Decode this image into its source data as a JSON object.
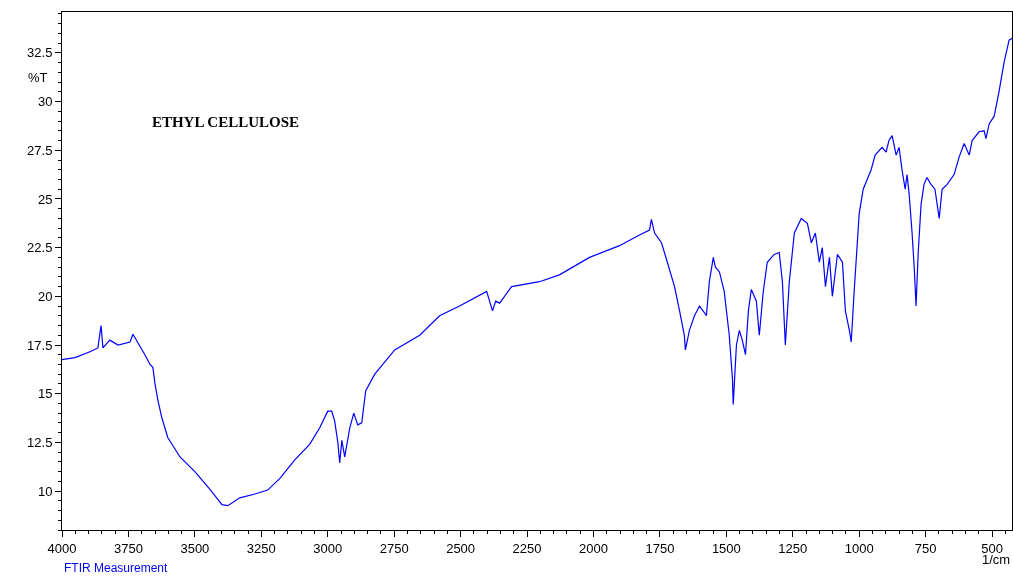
{
  "chart_data": {
    "type": "line",
    "title": "ETHYL CELLULOSE",
    "xlabel": "1/cm",
    "ylabel": "%T",
    "annotations": [
      "FTIR Measurement"
    ],
    "x": [
      4000,
      3951,
      3895,
      3865,
      3853,
      3846,
      3820,
      3789,
      3744,
      3733,
      3714,
      3688,
      3669,
      3658,
      3650,
      3639,
      3624,
      3602,
      3556,
      3500,
      3444,
      3398,
      3376,
      3331,
      3274,
      3226,
      3180,
      3124,
      3068,
      3030,
      3000,
      2985,
      2974,
      2962,
      2955,
      2947,
      2936,
      2917,
      2902,
      2887,
      2872,
      2857,
      2823,
      2748,
      2654,
      2579,
      2504,
      2402,
      2380,
      2368,
      2353,
      2308,
      2203,
      2128,
      2015,
      1902,
      1827,
      1789,
      1782,
      1770,
      1744,
      1722,
      1695,
      1676,
      1658,
      1654,
      1639,
      1620,
      1601,
      1582,
      1575,
      1564,
      1549,
      1541,
      1526,
      1508,
      1489,
      1477,
      1474,
      1462,
      1451,
      1440,
      1428,
      1417,
      1406,
      1387,
      1376,
      1361,
      1346,
      1320,
      1301,
      1289,
      1278,
      1263,
      1244,
      1218,
      1195,
      1180,
      1165,
      1150,
      1139,
      1127,
      1112,
      1101,
      1082,
      1063,
      1052,
      1037,
      1030,
      1019,
      1000,
      985,
      970,
      955,
      940,
      914,
      899,
      888,
      876,
      861,
      850,
      839,
      827,
      820,
      812,
      801,
      793,
      786,
      778,
      767,
      756,
      745,
      730,
      715,
      699,
      688,
      669,
      643,
      624,
      605,
      586,
      575,
      549,
      530,
      523,
      511,
      492,
      474,
      455,
      436,
      425
    ],
    "series": [
      {
        "color": "#0000ff",
        "values": [
          16.75,
          16.85,
          17.15,
          17.35,
          18.5,
          17.35,
          17.75,
          17.5,
          17.65,
          18.05,
          17.6,
          17.0,
          16.5,
          16.35,
          15.5,
          14.65,
          13.75,
          12.75,
          11.75,
          11.0,
          10.1,
          9.3,
          9.25,
          9.65,
          9.85,
          10.05,
          10.65,
          11.6,
          12.4,
          13.25,
          14.1,
          14.1,
          13.6,
          12.5,
          11.45,
          12.6,
          11.75,
          13.25,
          14.0,
          13.4,
          13.5,
          15.15,
          16.0,
          17.25,
          18.0,
          19.0,
          19.5,
          20.25,
          19.25,
          19.75,
          19.65,
          20.5,
          20.75,
          21.1,
          22.0,
          22.6,
          23.15,
          23.4,
          23.95,
          23.25,
          22.75,
          21.75,
          20.5,
          19.25,
          18.0,
          17.25,
          18.25,
          19.0,
          19.5,
          19.15,
          19.0,
          20.75,
          22.0,
          21.5,
          21.25,
          20.25,
          18.0,
          15.75,
          14.45,
          17.5,
          18.25,
          17.75,
          17.0,
          19.25,
          20.35,
          19.75,
          18.0,
          20.25,
          21.75,
          22.15,
          22.25,
          20.75,
          17.5,
          20.75,
          23.25,
          24.0,
          23.75,
          22.75,
          23.25,
          21.75,
          22.5,
          20.5,
          22.0,
          20.0,
          22.15,
          21.75,
          19.25,
          18.25,
          17.65,
          20.25,
          24.25,
          25.5,
          26.0,
          26.5,
          27.25,
          27.65,
          27.4,
          28.0,
          28.25,
          27.25,
          27.65,
          26.5,
          25.5,
          26.25,
          25.25,
          23.25,
          21.5,
          19.5,
          22.25,
          24.75,
          25.75,
          26.1,
          25.75,
          25.5,
          24.0,
          25.5,
          25.75,
          26.25,
          27.15,
          27.85,
          27.25,
          28.0,
          28.45,
          28.5,
          28.1,
          28.85,
          29.25,
          30.5,
          32.0,
          33.15,
          33.25
        ]
      }
    ],
    "xlim": [
      4000,
      425
    ],
    "ylim": [
      8,
      34.6
    ],
    "xticks": [
      4000,
      3750,
      3500,
      3250,
      3000,
      2750,
      2500,
      2250,
      2000,
      1750,
      1500,
      1250,
      1000,
      750,
      500
    ],
    "yticks": [
      10,
      12.5,
      15,
      17.5,
      20,
      22.5,
      25,
      27.5,
      30,
      32.5
    ],
    "grid": false,
    "marker": "none",
    "line_style": "solid"
  }
}
